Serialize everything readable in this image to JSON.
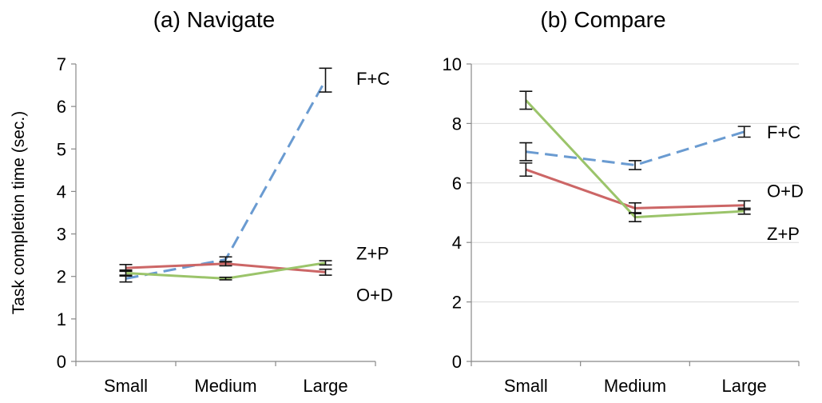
{
  "chart_data": [
    {
      "type": "line",
      "title": "(a) Navigate",
      "ylabel": "Task completion time (sec.)",
      "xlabel": "",
      "categories": [
        "Small",
        "Medium",
        "Large"
      ],
      "ylim": [
        0,
        7
      ],
      "yticks": [
        0,
        1,
        2,
        3,
        4,
        5,
        6,
        7
      ],
      "grid": false,
      "series": [
        {
          "name": "F+C",
          "values": [
            1.95,
            2.4,
            6.62
          ],
          "err": [
            0.08,
            0.06,
            0.28
          ],
          "color": "#6a9bd1",
          "dash": true
        },
        {
          "name": "O+D",
          "values": [
            2.2,
            2.3,
            2.1
          ],
          "err": [
            0.08,
            0.05,
            0.07
          ],
          "color": "#cc6666",
          "dash": false
        },
        {
          "name": "Z+P",
          "values": [
            2.08,
            1.95,
            2.32
          ],
          "err": [
            0.07,
            0.03,
            0.05
          ],
          "color": "#9bc46a",
          "dash": false
        }
      ]
    },
    {
      "type": "line",
      "title": "(b) Compare",
      "ylabel": "",
      "xlabel": "",
      "categories": [
        "Small",
        "Medium",
        "Large"
      ],
      "ylim": [
        0,
        10
      ],
      "yticks": [
        0,
        2,
        4,
        6,
        8,
        10
      ],
      "grid": true,
      "series": [
        {
          "name": "F+C",
          "values": [
            7.05,
            6.6,
            7.72
          ],
          "err": [
            0.3,
            0.15,
            0.18
          ],
          "color": "#6a9bd1",
          "dash": true
        },
        {
          "name": "O+D",
          "values": [
            6.45,
            5.15,
            5.25
          ],
          "err": [
            0.22,
            0.18,
            0.15
          ],
          "color": "#cc6666",
          "dash": false
        },
        {
          "name": "Z+P",
          "values": [
            8.78,
            4.85,
            5.05
          ],
          "err": [
            0.3,
            0.15,
            0.1
          ],
          "color": "#9bc46a",
          "dash": false
        }
      ]
    }
  ]
}
